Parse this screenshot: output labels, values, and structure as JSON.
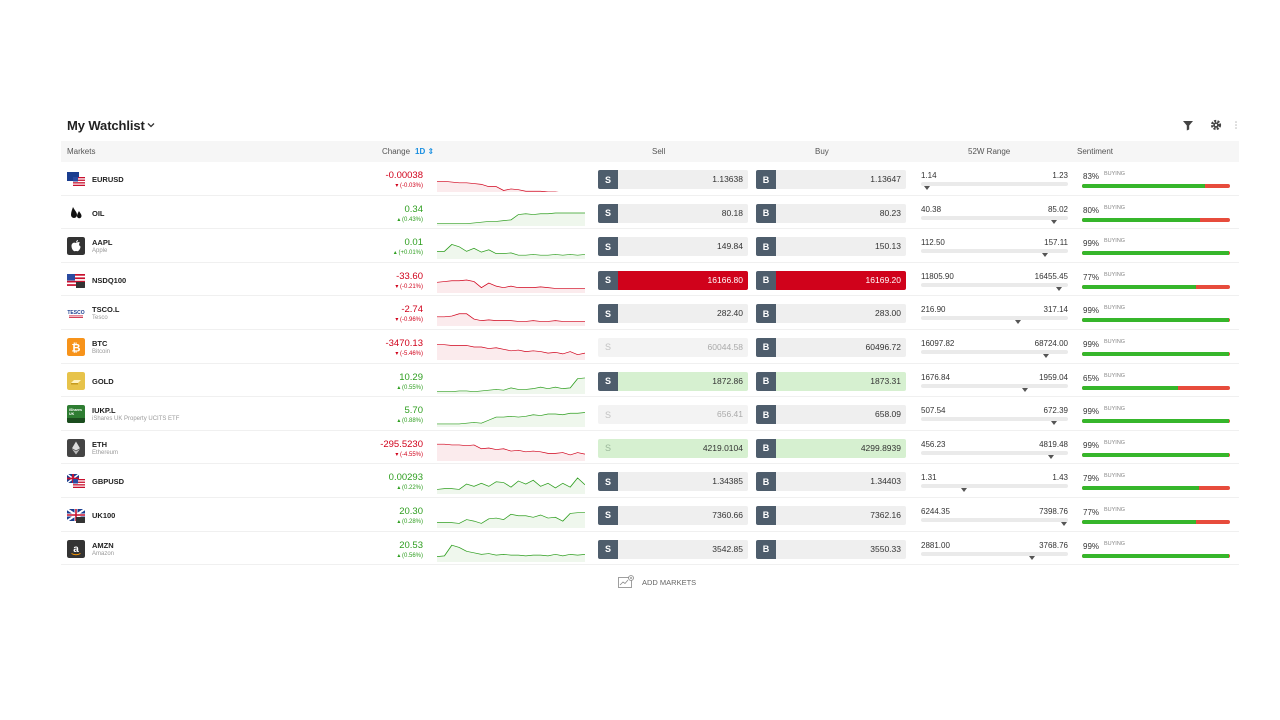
{
  "header": {
    "title": "My Watchlist"
  },
  "columns": {
    "markets": "Markets",
    "change": "Change",
    "period": "1D ⇕",
    "sell": "Sell",
    "buy": "Buy",
    "range": "52W Range",
    "sentiment": "Sentiment"
  },
  "add_markets_label": "ADD MARKETS",
  "colors": {
    "negative": "#d0021b",
    "positive": "#2e9e1f",
    "button": "#4e5d6c",
    "sentiment_buy": "#36b62b",
    "sentiment_sell": "#e74c3c"
  },
  "rows": [
    {
      "symbol": "EURUSD",
      "name": "",
      "icon": "us-eu-flag-icon",
      "change": "-0.00038",
      "change_pct": "▾ (-0.03%)",
      "dir": "neg",
      "spark": [
        20,
        20,
        21,
        22,
        22,
        23,
        24,
        27,
        27,
        32,
        30,
        31,
        33,
        33,
        33,
        34,
        34,
        35,
        35,
        36,
        36
      ],
      "sell": "1.13638",
      "buy": "1.13647",
      "state": "normal",
      "low": "1.14",
      "high": "1.23",
      "range_pos": 0.02,
      "sentiment": "83%",
      "sent_label": "BUYING",
      "sent_val": 0.83
    },
    {
      "symbol": "OIL",
      "name": "",
      "icon": "oil-drop-icon",
      "change": "0.34",
      "change_pct": "▴ (0.43%)",
      "dir": "pos",
      "spark": [
        31,
        31,
        31,
        31,
        31,
        30,
        29,
        28,
        28,
        27,
        26,
        19,
        18,
        19,
        18,
        18,
        17,
        17,
        17,
        17,
        17
      ],
      "sell": "80.18",
      "buy": "80.23",
      "state": "normal",
      "low": "40.38",
      "high": "85.02",
      "range_pos": 0.9,
      "sentiment": "80%",
      "sent_label": "BUYING",
      "sent_val": 0.8
    },
    {
      "symbol": "AAPL",
      "name": "Apple",
      "icon": "apple-icon",
      "change": "0.01",
      "change_pct": "▴ (+0.01%)",
      "dir": "pos",
      "spark": [
        24,
        24,
        15,
        18,
        24,
        20,
        25,
        22,
        27,
        27,
        26,
        29,
        29,
        28,
        29,
        29,
        28,
        29,
        28,
        29,
        28
      ],
      "sell": "149.84",
      "buy": "150.13",
      "state": "normal",
      "low": "112.50",
      "high": "157.11",
      "range_pos": 0.84,
      "sentiment": "99%",
      "sent_label": "BUYING",
      "sent_val": 0.99
    },
    {
      "symbol": "NSDQ100",
      "name": "",
      "icon": "us-flag-icon",
      "change": "-33.60",
      "change_pct": "▾ (-0.21%)",
      "dir": "neg",
      "spark": [
        20,
        19,
        18,
        18,
        17,
        19,
        27,
        21,
        25,
        27,
        25,
        27,
        27,
        27,
        26,
        27,
        28,
        28,
        28,
        28,
        28
      ],
      "sell": "16166.80",
      "buy": "16169.20",
      "state": "red",
      "low": "11805.90",
      "high": "16455.45",
      "range_pos": 0.94,
      "sentiment": "77%",
      "sent_label": "BUYING",
      "sent_val": 0.77
    },
    {
      "symbol": "TSCO.L",
      "name": "Tesco",
      "icon": "tesco-icon",
      "change": "-2.74",
      "change_pct": "▾ (-0.96%)",
      "dir": "neg",
      "spark": [
        22,
        22,
        21,
        18,
        18,
        25,
        27,
        26,
        27,
        27,
        27,
        28,
        28,
        27,
        28,
        28,
        27,
        28,
        28,
        28,
        28
      ],
      "sell": "282.40",
      "buy": "283.00",
      "state": "normal",
      "low": "216.90",
      "high": "317.14",
      "range_pos": 0.65,
      "sentiment": "99%",
      "sent_label": "BUYING",
      "sent_val": 0.99
    },
    {
      "symbol": "BTC",
      "name": "Bitcoin",
      "icon": "bitcoin-icon",
      "change": "-3470.13",
      "change_pct": "▾ (-5.46%)",
      "dir": "neg",
      "spark": [
        14,
        14,
        15,
        15,
        15,
        17,
        17,
        19,
        18,
        20,
        22,
        21,
        23,
        22,
        23,
        25,
        24,
        26,
        23,
        27,
        25
      ],
      "sell": "60044.58",
      "buy": "60496.72",
      "state": "sell-disabled",
      "low": "16097.82",
      "high": "68724.00",
      "range_pos": 0.85,
      "sentiment": "99%",
      "sent_label": "BUYING",
      "sent_val": 0.99
    },
    {
      "symbol": "GOLD",
      "name": "",
      "icon": "gold-bar-icon",
      "change": "10.29",
      "change_pct": "▴ (0.55%)",
      "dir": "pos",
      "spark": [
        31,
        31,
        31,
        30,
        30,
        31,
        30,
        29,
        28,
        29,
        26,
        28,
        28,
        27,
        25,
        27,
        25,
        27,
        26,
        14,
        13
      ],
      "sell": "1872.86",
      "buy": "1873.31",
      "state": "green",
      "low": "1676.84",
      "high": "1959.04",
      "range_pos": 0.7,
      "sentiment": "65%",
      "sent_label": "BUYING",
      "sent_val": 0.65
    },
    {
      "symbol": "IUKP.L",
      "name": "iShares UK Property UCITS ETF",
      "icon": "ishares-icon",
      "change": "5.70",
      "change_pct": "▴ (0.88%)",
      "dir": "pos",
      "spark": [
        30,
        30,
        30,
        30,
        29,
        28,
        29,
        25,
        21,
        21,
        20,
        21,
        20,
        18,
        19,
        17,
        17,
        18,
        16,
        16,
        15
      ],
      "sell": "656.41",
      "buy": "658.09",
      "state": "sell-disabled",
      "low": "507.54",
      "high": "672.39",
      "range_pos": 0.9,
      "sentiment": "99%",
      "sent_label": "BUYING",
      "sent_val": 0.99
    },
    {
      "symbol": "ETH",
      "name": "Ethereum",
      "icon": "ethereum-icon",
      "change": "-295.5230",
      "change_pct": "▾ (-4.55%)",
      "dir": "neg",
      "spark": [
        12,
        12,
        13,
        13,
        14,
        13,
        18,
        17,
        19,
        18,
        21,
        20,
        22,
        21,
        22,
        24,
        24,
        23,
        26,
        23,
        25
      ],
      "sell": "4219.0104",
      "buy": "4299.8939",
      "state": "eth",
      "low": "456.23",
      "high": "4819.48",
      "range_pos": 0.88,
      "sentiment": "99%",
      "sent_label": "BUYING",
      "sent_val": 0.99
    },
    {
      "symbol": "GBPUSD",
      "name": "",
      "icon": "gb-us-flag-icon",
      "change": "0.00293",
      "change_pct": "▴ (0.22%)",
      "dir": "pos",
      "spark": [
        28,
        27,
        27,
        28,
        21,
        24,
        20,
        24,
        18,
        19,
        25,
        17,
        21,
        16,
        24,
        20,
        26,
        20,
        25,
        13,
        22
      ],
      "sell": "1.34385",
      "buy": "1.34403",
      "state": "normal",
      "low": "1.31",
      "high": "1.43",
      "range_pos": 0.28,
      "sentiment": "79%",
      "sent_label": "BUYING",
      "sent_val": 0.79
    },
    {
      "symbol": "UK100",
      "name": "",
      "icon": "uk-flag-icon",
      "change": "20.30",
      "change_pct": "▴ (0.28%)",
      "dir": "pos",
      "spark": [
        27,
        27,
        27,
        28,
        23,
        25,
        28,
        22,
        21,
        23,
        16,
        18,
        18,
        20,
        17,
        21,
        20,
        25,
        15,
        14,
        14
      ],
      "sell": "7360.66",
      "buy": "7362.16",
      "state": "normal",
      "low": "6244.35",
      "high": "7398.76",
      "range_pos": 0.97,
      "sentiment": "77%",
      "sent_label": "BUYING",
      "sent_val": 0.77
    },
    {
      "symbol": "AMZN",
      "name": "Amazon",
      "icon": "amazon-icon",
      "change": "20.53",
      "change_pct": "▴ (0.56%)",
      "dir": "pos",
      "spark": [
        27,
        26,
        12,
        15,
        20,
        22,
        24,
        23,
        25,
        24,
        25,
        25,
        26,
        25,
        25,
        26,
        24,
        26,
        24,
        25,
        24
      ],
      "sell": "3542.85",
      "buy": "3550.33",
      "state": "normal",
      "low": "2881.00",
      "high": "3768.76",
      "range_pos": 0.75,
      "sentiment": "99%",
      "sent_label": "BUYING",
      "sent_val": 0.99
    }
  ]
}
